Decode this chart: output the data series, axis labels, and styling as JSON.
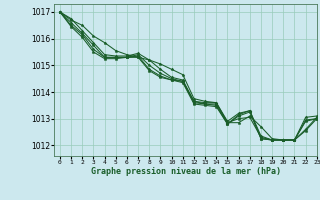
{
  "title": "Graphe pression niveau de la mer (hPa)",
  "bg_color": "#cce8ee",
  "plot_bg_color": "#cce8ee",
  "grid_color": "#99ccbb",
  "line_color": "#1a5e2a",
  "marker_color": "#1a5e2a",
  "xlim": [
    -0.5,
    23
  ],
  "ylim": [
    1011.6,
    1017.3
  ],
  "xticks": [
    0,
    1,
    2,
    3,
    4,
    5,
    6,
    7,
    8,
    9,
    10,
    11,
    12,
    13,
    14,
    15,
    16,
    17,
    18,
    19,
    20,
    21,
    22,
    23
  ],
  "yticks": [
    1012,
    1013,
    1014,
    1015,
    1016,
    1017
  ],
  "series": [
    [
      1017.0,
      1016.7,
      1016.5,
      1016.1,
      1015.85,
      1015.55,
      1015.4,
      1015.3,
      1015.2,
      1015.05,
      1014.85,
      1014.65,
      1013.75,
      1013.65,
      1013.6,
      1012.9,
      1013.2,
      1013.3,
      1012.35,
      1012.2,
      1012.2,
      1012.2,
      1012.6,
      1013.05
    ],
    [
      1017.0,
      1016.75,
      1016.3,
      1015.85,
      1015.4,
      1015.35,
      1015.35,
      1015.45,
      1015.2,
      1014.85,
      1014.55,
      1014.45,
      1013.65,
      1013.6,
      1013.6,
      1012.85,
      1012.85,
      1013.1,
      1012.7,
      1012.25,
      1012.2,
      1012.2,
      1013.05,
      1013.1
    ],
    [
      1017.0,
      1016.6,
      1016.2,
      1015.75,
      1015.3,
      1015.3,
      1015.3,
      1015.4,
      1015.0,
      1014.7,
      1014.5,
      1014.4,
      1013.65,
      1013.55,
      1013.55,
      1012.85,
      1013.0,
      1013.05,
      1012.3,
      1012.2,
      1012.2,
      1012.2,
      1012.55,
      1013.0
    ],
    [
      1017.0,
      1016.5,
      1016.15,
      1015.6,
      1015.3,
      1015.3,
      1015.3,
      1015.35,
      1014.85,
      1014.6,
      1014.45,
      1014.4,
      1013.6,
      1013.55,
      1013.5,
      1012.8,
      1013.1,
      1013.25,
      1012.25,
      1012.2,
      1012.2,
      1012.2,
      1012.95,
      1013.0
    ],
    [
      1017.0,
      1016.45,
      1016.05,
      1015.5,
      1015.25,
      1015.25,
      1015.3,
      1015.3,
      1014.8,
      1014.55,
      1014.45,
      1014.35,
      1013.55,
      1013.5,
      1013.45,
      1012.8,
      1013.15,
      1013.3,
      1012.25,
      1012.2,
      1012.2,
      1012.2,
      1012.9,
      1013.0
    ]
  ]
}
